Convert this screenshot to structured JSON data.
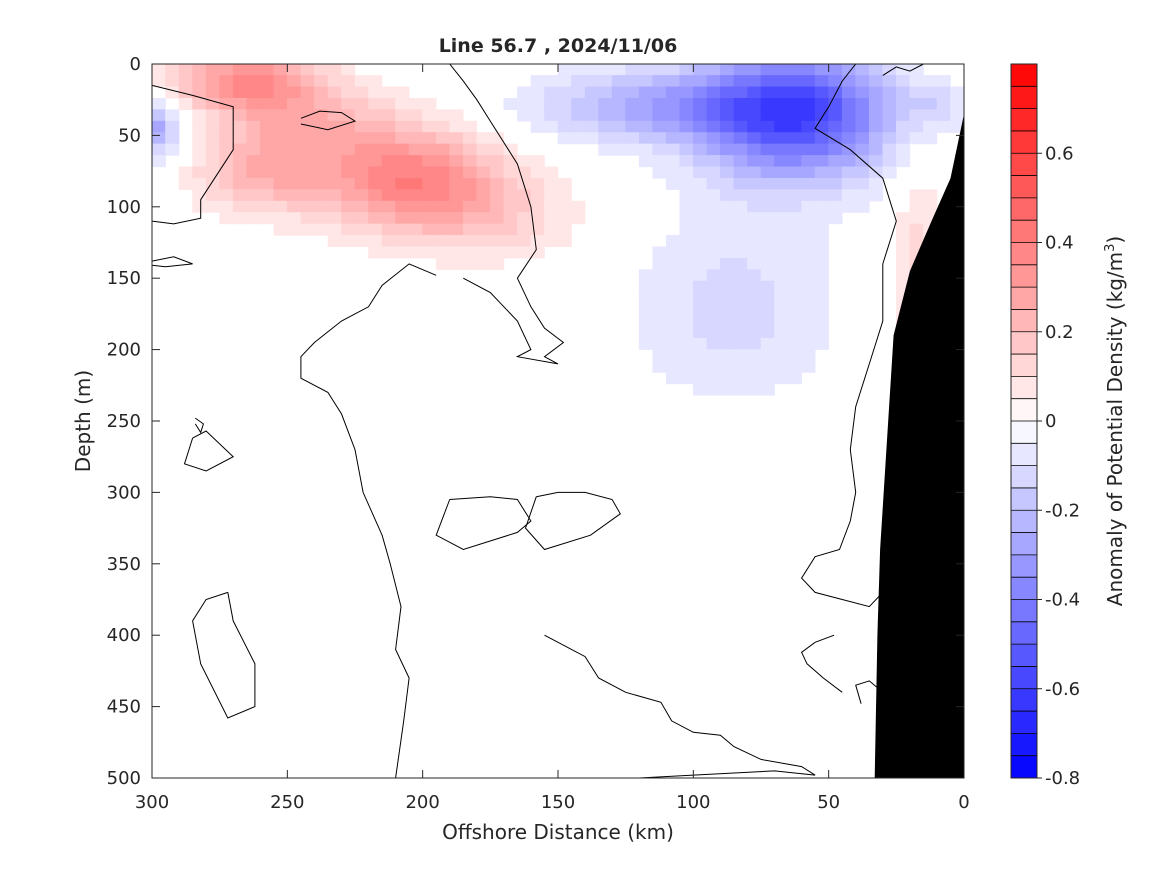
{
  "chart_data": {
    "type": "heatmap",
    "title": "Line 56.7 , 2024/11/06",
    "xlabel": "Offshore Distance (km)",
    "ylabel": "Depth (m)",
    "colorbar_label": "Anomaly of Potential Density (kg/m",
    "colorbar_label_sup": "3",
    "colorbar_label_tail": ")",
    "xlim": [
      300,
      0
    ],
    "ylim": [
      0,
      500
    ],
    "x_reversed": true,
    "y_reversed": true,
    "clim": [
      -0.8,
      0.8
    ],
    "x_ticks": [
      300,
      250,
      200,
      150,
      100,
      50,
      0
    ],
    "y_ticks": [
      0,
      50,
      100,
      150,
      200,
      250,
      300,
      350,
      400,
      450,
      500
    ],
    "colorbar_ticks": [
      {
        "value": 0.6,
        "label": "0.6"
      },
      {
        "value": 0.4,
        "label": "0.4"
      },
      {
        "value": 0.2,
        "label": "0.2"
      },
      {
        "value": 0,
        "label": "0"
      },
      {
        "value": -0.2,
        "label": "-0.2"
      },
      {
        "value": -0.4,
        "label": "-0.4"
      },
      {
        "value": -0.6,
        "label": "-0.6"
      },
      {
        "value": -0.8,
        "label": "-0.8"
      }
    ],
    "colormap": {
      "negative": "#0000ff",
      "zero": "#ffffff",
      "positive": "#ff0000",
      "levels": 32
    },
    "terrain_color": "#000000",
    "features": [
      {
        "name": "surface-positive-core",
        "x": 265,
        "depth": 12,
        "value": 0.35
      },
      {
        "name": "subsurface-positive-core",
        "x": 205,
        "depth": 80,
        "value": 0.38
      },
      {
        "name": "left-edge-negative",
        "x": 300,
        "depth": 45,
        "value": -0.3
      },
      {
        "name": "offshore-negative-core",
        "x": 62,
        "depth": 35,
        "value": -0.58
      },
      {
        "name": "nearshore-positive",
        "x": 15,
        "depth": 110,
        "value": 0.12
      }
    ],
    "bathymetry": [
      {
        "x": 0,
        "depth": 35
      },
      {
        "x": 5,
        "depth": 80
      },
      {
        "x": 12,
        "depth": 110
      },
      {
        "x": 20,
        "depth": 145
      },
      {
        "x": 26,
        "depth": 190
      },
      {
        "x": 31,
        "depth": 340
      },
      {
        "x": 32,
        "depth": 400
      },
      {
        "x": 33,
        "depth": 500
      }
    ]
  }
}
